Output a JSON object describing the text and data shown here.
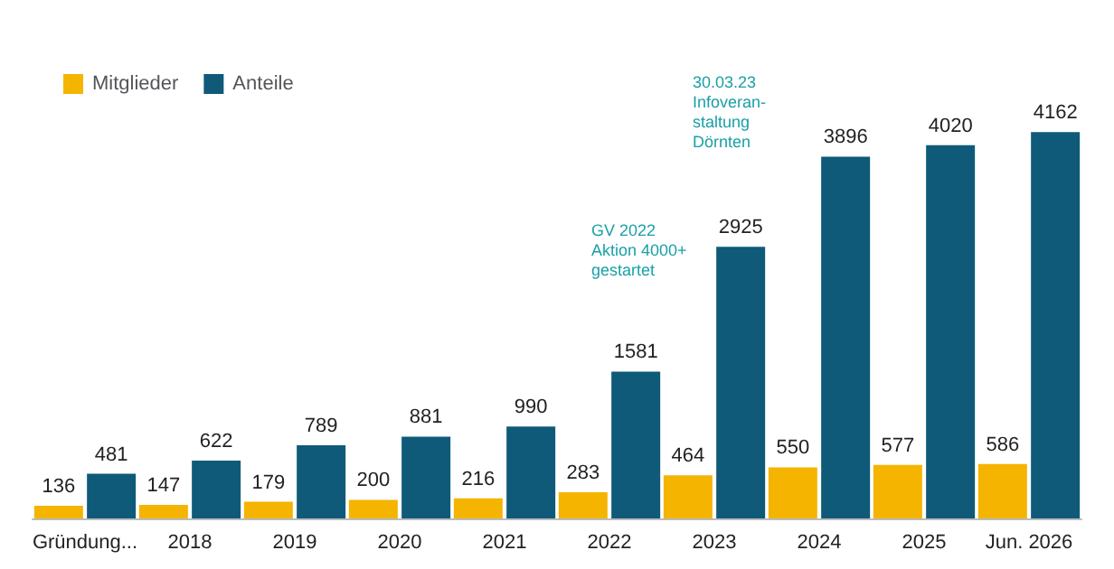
{
  "chart_data": {
    "type": "bar",
    "categories": [
      "Gründung...",
      "2018",
      "2019",
      "2020",
      "2021",
      "2022",
      "2023",
      "2024",
      "2025",
      "Jun. 2026"
    ],
    "series": [
      {
        "name": "Mitglieder",
        "color": "#f5b400",
        "values": [
          136,
          147,
          179,
          200,
          216,
          283,
          464,
          550,
          577,
          586
        ]
      },
      {
        "name": "Anteile",
        "color": "#0e5a78",
        "values": [
          481,
          622,
          789,
          881,
          990,
          1581,
          2925,
          3896,
          4020,
          4162
        ]
      }
    ],
    "annotations": [
      "GV 2022\nAktion 4000+\ngestartet",
      "30.03.23\nInfoveran-\nstaltung\nDörnten"
    ],
    "data_labels": true,
    "legend": "top left"
  }
}
